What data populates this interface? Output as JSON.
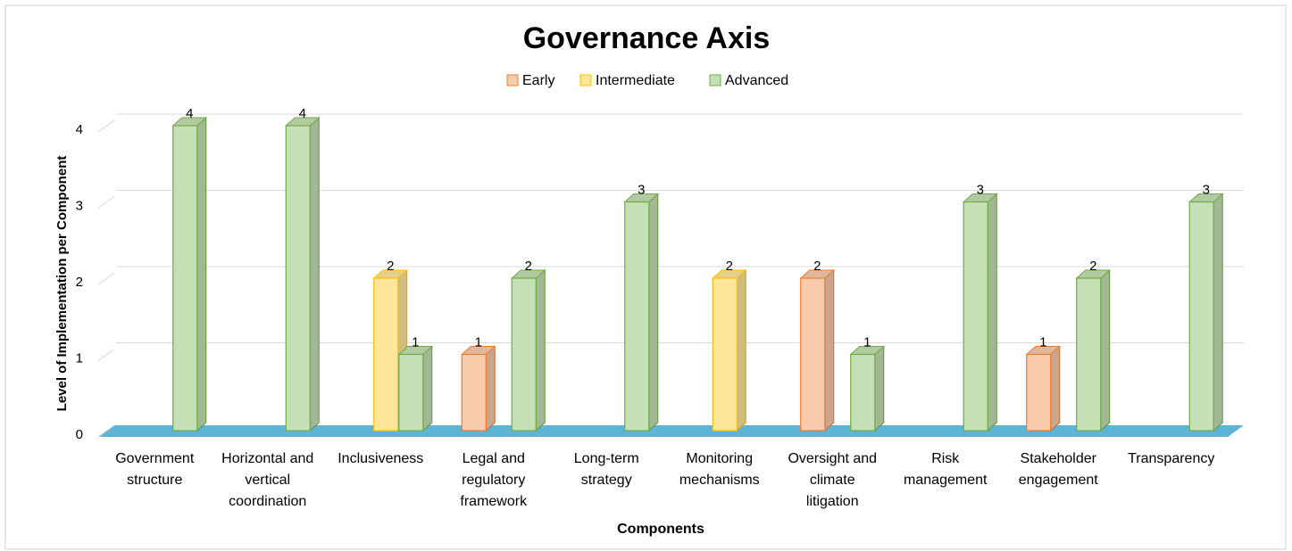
{
  "chart_data": {
    "type": "bar3d",
    "title": "Governance Axis",
    "x_label": "Components",
    "y_label": "Level of Implementation per Component",
    "categories": [
      "Government structure",
      "Horizontal and vertical coordination",
      "Inclusiveness",
      "Legal and regulatory framework",
      "Long-term strategy",
      "Monitoring mechanisms",
      "Oversight and climate litigation",
      "Risk management",
      "Stakeholder engagement",
      "Transparency"
    ],
    "series": [
      {
        "name": "Early",
        "color": "#f8cbad",
        "edge": "#ed7d31",
        "values": [
          null,
          null,
          null,
          1,
          null,
          null,
          2,
          null,
          1,
          null
        ]
      },
      {
        "name": "Intermediate",
        "color": "#ffe699",
        "edge": "#ffc000",
        "values": [
          null,
          null,
          2,
          null,
          null,
          2,
          null,
          null,
          null,
          null
        ]
      },
      {
        "name": "Advanced",
        "color": "#c5e0b4",
        "edge": "#70ad47",
        "values": [
          4,
          4,
          1,
          2,
          3,
          null,
          1,
          3,
          2,
          3
        ]
      }
    ],
    "ylim": [
      0,
      4
    ],
    "yticks": [
      0,
      1,
      2,
      3,
      4
    ],
    "grid": true,
    "floor_color": "#5cb4d6",
    "legend": "top"
  }
}
